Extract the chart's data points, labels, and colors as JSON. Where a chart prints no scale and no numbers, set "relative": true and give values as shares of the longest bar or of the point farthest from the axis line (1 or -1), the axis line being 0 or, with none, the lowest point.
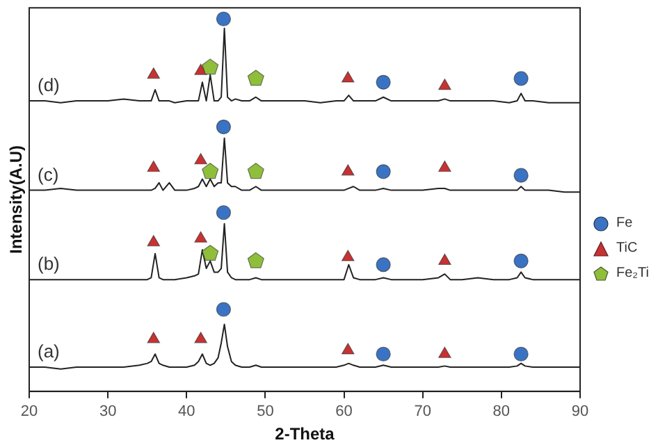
{
  "chart_data": {
    "type": "line",
    "relative": true,
    "xlabel": "2-Theta",
    "ylabel": "Intensity(A.U)",
    "xlim": [
      20,
      90
    ],
    "xticks": [
      20,
      30,
      40,
      50,
      60,
      70,
      80,
      90
    ],
    "tick_labels": "x",
    "grid": false,
    "legend": "right",
    "x": [
      20,
      22,
      24,
      26,
      28,
      30,
      32,
      34,
      35,
      35.5,
      36,
      36.5,
      37,
      37.8,
      38.5,
      40,
      41,
      41.5,
      42,
      42.5,
      43,
      43.5,
      44,
      44.4,
      44.8,
      45.2,
      45.7,
      46.2,
      47,
      48,
      48.8,
      49.5,
      51,
      53,
      55,
      57,
      59,
      60,
      60.6,
      61.2,
      62,
      64,
      65,
      66,
      68,
      70,
      72,
      72.8,
      73.5,
      75,
      77,
      79,
      81,
      82,
      82.5,
      83,
      84,
      86,
      88,
      90
    ],
    "series": [
      {
        "name": "(a)",
        "color": "#222222",
        "marker": "none",
        "values": [
          0.065,
          0.065,
          0.06,
          0.065,
          0.065,
          0.065,
          0.065,
          0.07,
          0.075,
          0.08,
          0.1,
          0.075,
          0.07,
          0.065,
          0.065,
          0.065,
          0.07,
          0.08,
          0.1,
          0.075,
          0.07,
          0.075,
          0.09,
          0.13,
          0.18,
          0.12,
          0.08,
          0.07,
          0.065,
          0.065,
          0.07,
          0.065,
          0.065,
          0.065,
          0.065,
          0.065,
          0.065,
          0.07,
          0.075,
          0.07,
          0.065,
          0.065,
          0.07,
          0.065,
          0.065,
          0.065,
          0.065,
          0.068,
          0.065,
          0.065,
          0.065,
          0.065,
          0.065,
          0.068,
          0.075,
          0.068,
          0.065,
          0.065,
          0.065,
          0.065
        ]
      },
      {
        "name": "(b)",
        "color": "#222222",
        "marker": "none",
        "values": [
          0.3,
          0.3,
          0.3,
          0.3,
          0.3,
          0.3,
          0.3,
          0.3,
          0.3,
          0.305,
          0.37,
          0.305,
          0.3,
          0.3,
          0.3,
          0.305,
          0.31,
          0.315,
          0.38,
          0.33,
          0.35,
          0.32,
          0.32,
          0.33,
          0.45,
          0.32,
          0.305,
          0.3,
          0.3,
          0.3,
          0.305,
          0.3,
          0.3,
          0.3,
          0.3,
          0.3,
          0.3,
          0.3,
          0.34,
          0.305,
          0.3,
          0.3,
          0.305,
          0.3,
          0.3,
          0.3,
          0.305,
          0.315,
          0.3,
          0.3,
          0.305,
          0.3,
          0.3,
          0.305,
          0.32,
          0.305,
          0.3,
          0.3,
          0.3,
          0.3
        ]
      },
      {
        "name": "(c)",
        "color": "#222222",
        "marker": "none",
        "values": [
          0.54,
          0.54,
          0.545,
          0.54,
          0.54,
          0.54,
          0.54,
          0.54,
          0.54,
          0.54,
          0.545,
          0.56,
          0.54,
          0.56,
          0.54,
          0.54,
          0.545,
          0.55,
          0.57,
          0.55,
          0.57,
          0.55,
          0.56,
          0.56,
          0.68,
          0.56,
          0.55,
          0.55,
          0.54,
          0.54,
          0.55,
          0.54,
          0.54,
          0.54,
          0.54,
          0.54,
          0.54,
          0.54,
          0.545,
          0.55,
          0.54,
          0.54,
          0.545,
          0.54,
          0.54,
          0.54,
          0.545,
          0.545,
          0.54,
          0.54,
          0.54,
          0.54,
          0.54,
          0.54,
          0.55,
          0.54,
          0.54,
          0.54,
          0.535,
          0.535
        ]
      },
      {
        "name": "(d)",
        "color": "#222222",
        "marker": "none",
        "values": [
          0.78,
          0.78,
          0.775,
          0.78,
          0.78,
          0.78,
          0.785,
          0.78,
          0.78,
          0.78,
          0.81,
          0.78,
          0.78,
          0.78,
          0.775,
          0.78,
          0.78,
          0.78,
          0.83,
          0.78,
          0.85,
          0.78,
          0.78,
          0.79,
          0.975,
          0.79,
          0.78,
          0.785,
          0.78,
          0.78,
          0.79,
          0.78,
          0.78,
          0.78,
          0.78,
          0.775,
          0.78,
          0.78,
          0.795,
          0.78,
          0.78,
          0.78,
          0.79,
          0.78,
          0.78,
          0.78,
          0.78,
          0.785,
          0.78,
          0.78,
          0.78,
          0.78,
          0.775,
          0.78,
          0.8,
          0.78,
          0.78,
          0.775,
          0.775,
          0.775
        ]
      },
      {
        "name": "Fe",
        "type": "scatter",
        "color": "#3b73c4",
        "marker": "circle",
        "x": [
          44.7,
          65,
          82.5,
          44.7,
          65,
          82.5,
          44.7,
          65,
          82.5,
          44.7,
          65,
          82.5
        ],
        "values": [
          1.0,
          0.83,
          0.84,
          0.71,
          0.59,
          0.58,
          0.48,
          0.34,
          0.35,
          0.22,
          0.1,
          0.1
        ]
      },
      {
        "name": "TiC",
        "type": "scatter",
        "color": "#c83232",
        "marker": "triangle",
        "x": [
          35.8,
          41.8,
          60.5,
          72.8,
          35.8,
          41.8,
          60.5,
          72.8,
          35.8,
          41.8,
          60.5,
          72.8,
          35.8,
          41.8,
          60.5,
          72.8
        ],
        "values": [
          0.85,
          0.86,
          0.84,
          0.82,
          0.6,
          0.62,
          0.59,
          0.6,
          0.4,
          0.41,
          0.36,
          0.35,
          0.14,
          0.14,
          0.11,
          0.1
        ]
      },
      {
        "name": "Fe₂Ti",
        "type": "scatter",
        "color": "#8fbf3a",
        "x": [
          43,
          48.8,
          43,
          48.8,
          43,
          48.8
        ],
        "values": [
          0.87,
          0.84,
          0.59,
          0.59,
          0.37,
          0.35
        ]
      }
    ]
  }
}
